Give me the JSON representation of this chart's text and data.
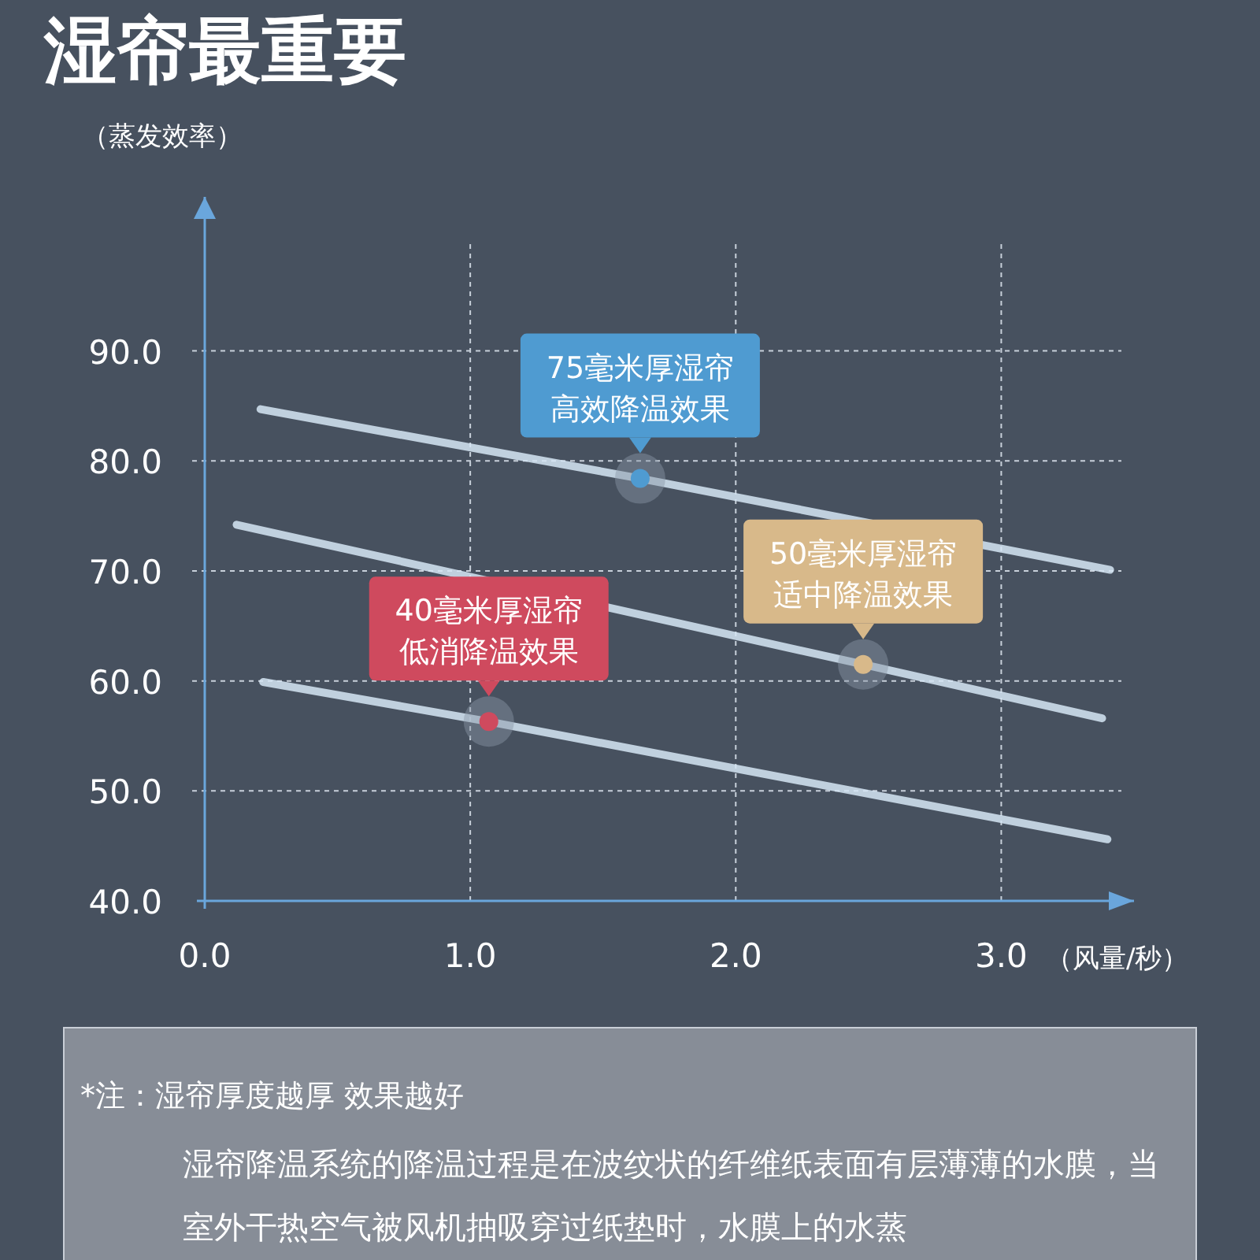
{
  "chart_data": {
    "type": "line",
    "title": "湿帘最重要",
    "ylabel": "（蒸发效率）",
    "xlabel": "（风量/秒）",
    "xlim": [
      0,
      3.5
    ],
    "ylim": [
      40,
      104
    ],
    "xticks": [
      {
        "value": 0,
        "label": "0.0"
      },
      {
        "value": 1,
        "label": "1.0"
      },
      {
        "value": 2,
        "label": "2.0"
      },
      {
        "value": 3,
        "label": "3.0"
      }
    ],
    "yticks": [
      {
        "value": 40,
        "label": "40.0"
      },
      {
        "value": 50,
        "label": "50.0"
      },
      {
        "value": 60,
        "label": "60.0"
      },
      {
        "value": 70,
        "label": "70.0"
      },
      {
        "value": 80,
        "label": "80.0"
      },
      {
        "value": 90,
        "label": "90.0"
      }
    ],
    "grid": true,
    "legend": false,
    "marker": "circle",
    "line_style": "solid",
    "series": [
      {
        "marker": "none",
        "color": "#d6e6f5",
        "x": [
          0.21,
          1.64,
          3.41
        ],
        "values": [
          84.7,
          78.4,
          70.1
        ]
      },
      {
        "marker": "none",
        "color": "#d6e6f5",
        "x": [
          0.12,
          2.48,
          3.38
        ],
        "values": [
          74.2,
          61.5,
          56.6
        ]
      },
      {
        "marker": "none",
        "color": "#d6e6f5",
        "x": [
          0.22,
          1.07,
          3.4
        ],
        "values": [
          59.9,
          56.3,
          45.6
        ]
      },
      {
        "type": "scatter",
        "name": "75毫米厚湿帘高效降温效果",
        "color": "#4f9bd1",
        "x": [
          1.64
        ],
        "values": [
          78.4
        ]
      },
      {
        "type": "scatter",
        "name": "50毫米厚湿帘适中降温效果",
        "color": "#d8b98a",
        "x": [
          2.48
        ],
        "values": [
          61.5
        ]
      },
      {
        "type": "scatter",
        "name": "40毫米厚湿帘低消降温效果",
        "color": "#cf4a5e",
        "x": [
          1.07
        ],
        "values": [
          56.3
        ]
      }
    ],
    "annotations": [
      "*注：湿帘厚度越厚 效果越好",
      "湿帘降温系统的降温过程是在波纹状的纤维纸表面有层薄薄的水膜，当室外干热空气被风机抽吸穿过纸垫时，水膜上的水蒸"
    ]
  }
}
